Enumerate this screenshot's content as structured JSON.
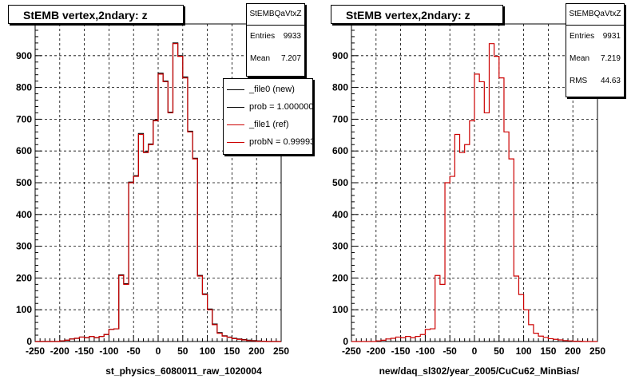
{
  "colors": {
    "new": "#000000",
    "ref": "#cc0000",
    "grid": "#000000"
  },
  "chart_data": [
    {
      "type": "histogram",
      "title": "StEMB  vertex,2ndary: z",
      "xlabel": "st_physics_6080011_raw_1020004",
      "xlim": [
        -250,
        250
      ],
      "ylim": [
        0,
        1000
      ],
      "xticks": [
        -250,
        -200,
        -150,
        -100,
        -50,
        0,
        50,
        100,
        150,
        200,
        250
      ],
      "yticks": [
        0,
        100,
        200,
        300,
        400,
        500,
        600,
        700,
        800,
        900
      ],
      "grid": true,
      "bin_width": 10,
      "x": [
        -250,
        -240,
        -230,
        -220,
        -210,
        -200,
        -190,
        -180,
        -170,
        -160,
        -150,
        -140,
        -130,
        -120,
        -110,
        -100,
        -90,
        -80,
        -70,
        -60,
        -50,
        -40,
        -30,
        -20,
        -10,
        0,
        10,
        20,
        30,
        40,
        50,
        60,
        70,
        80,
        90,
        100,
        110,
        120,
        130,
        140,
        150,
        160,
        170,
        180,
        190,
        200,
        210,
        220,
        230,
        240
      ],
      "series": [
        {
          "name": "_file0 (new)",
          "color": "#000000",
          "values": [
            0,
            0,
            0,
            0,
            0,
            2,
            4,
            8,
            10,
            14,
            12,
            16,
            12,
            16,
            22,
            38,
            40,
            210,
            182,
            502,
            522,
            655,
            597,
            622,
            698,
            845,
            820,
            722,
            940,
            900,
            833,
            662,
            577,
            208,
            150,
            102,
            55,
            28,
            18,
            14,
            10,
            8,
            6,
            4,
            3,
            2,
            1,
            0,
            0,
            0
          ]
        },
        {
          "name": "_file1 (ref)",
          "color": "#cc0000",
          "values": [
            0,
            0,
            0,
            0,
            0,
            2,
            4,
            8,
            10,
            14,
            12,
            16,
            12,
            16,
            22,
            38,
            40,
            208,
            180,
            500,
            520,
            652,
            595,
            620,
            695,
            842,
            818,
            720,
            938,
            898,
            830,
            660,
            575,
            206,
            148,
            100,
            53,
            26,
            17,
            13,
            9,
            7,
            5,
            3,
            2,
            1,
            1,
            0,
            0,
            0
          ]
        }
      ],
      "stats": {
        "name": "StEMBQaVtxZ",
        "entries_label": "Entries",
        "entries": "9933",
        "mean_label": "Mean",
        "mean": "7.207"
      },
      "legend": [
        "_file0 (new)",
        "prob = 1.000000",
        "_file1 (ref)",
        "probN = 0.99993"
      ]
    },
    {
      "type": "histogram",
      "title": "StEMB  vertex,2ndary: z",
      "xlabel": "new/daq_sl302/year_2005/CuCu62_MinBias/",
      "xlim": [
        -250,
        250
      ],
      "ylim": [
        0,
        1000
      ],
      "xticks": [
        -250,
        -200,
        -150,
        -100,
        -50,
        0,
        50,
        100,
        150,
        200,
        250
      ],
      "yticks": [
        0,
        100,
        200,
        300,
        400,
        500,
        600,
        700,
        800,
        900
      ],
      "grid": true,
      "bin_width": 10,
      "x": [
        -250,
        -240,
        -230,
        -220,
        -210,
        -200,
        -190,
        -180,
        -170,
        -160,
        -150,
        -140,
        -130,
        -120,
        -110,
        -100,
        -90,
        -80,
        -70,
        -60,
        -50,
        -40,
        -30,
        -20,
        -10,
        0,
        10,
        20,
        30,
        40,
        50,
        60,
        70,
        80,
        90,
        100,
        110,
        120,
        130,
        140,
        150,
        160,
        170,
        180,
        190,
        200,
        210,
        220,
        230,
        240
      ],
      "series": [
        {
          "color": "#cc0000",
          "values": [
            0,
            0,
            0,
            0,
            0,
            2,
            4,
            8,
            10,
            14,
            12,
            16,
            12,
            16,
            22,
            38,
            40,
            208,
            180,
            500,
            520,
            652,
            595,
            620,
            695,
            842,
            818,
            720,
            938,
            898,
            830,
            660,
            575,
            206,
            148,
            100,
            53,
            26,
            17,
            13,
            9,
            7,
            5,
            3,
            2,
            1,
            1,
            0,
            0,
            0
          ]
        }
      ],
      "stats": {
        "name": "StEMBQaVtxZ",
        "entries_label": "Entries",
        "entries": "9931",
        "mean_label": "Mean",
        "mean": "7.219",
        "rms_label": "RMS",
        "rms": "44.63"
      }
    }
  ]
}
